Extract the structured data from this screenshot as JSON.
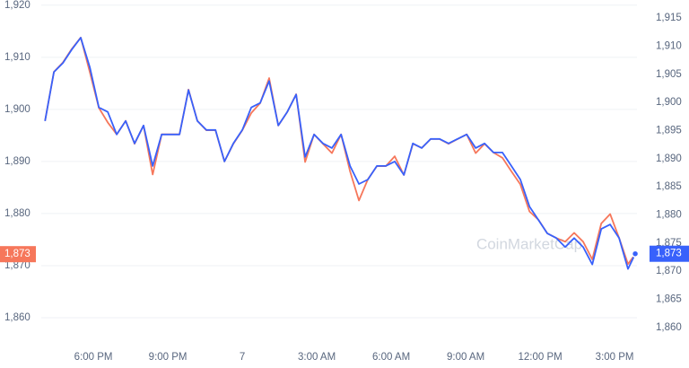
{
  "chart_data": {
    "type": "line",
    "watermark": "CoinMarketCap",
    "x": [
      16.05,
      16.41,
      16.77,
      17.13,
      17.49,
      17.86,
      18.22,
      18.58,
      18.94,
      19.3,
      19.66,
      20.02,
      20.39,
      20.75,
      21.11,
      21.47,
      21.83,
      22.19,
      22.55,
      22.92,
      23.28,
      23.64,
      24.0,
      24.36,
      24.72,
      25.08,
      25.45,
      25.81,
      26.17,
      26.53,
      26.89,
      27.25,
      27.61,
      27.98,
      28.34,
      28.7,
      29.06,
      29.42,
      29.78,
      30.14,
      30.51,
      30.87,
      31.23,
      31.59,
      31.95,
      32.31,
      32.67,
      33.04,
      33.4,
      33.76,
      34.12,
      34.48,
      34.84,
      35.2,
      35.57,
      35.93,
      36.29,
      36.65,
      37.01,
      37.37,
      37.73,
      38.1,
      38.46,
      38.82,
      39.18,
      39.54,
      39.83
    ],
    "series": [
      {
        "color": "#f6775b",
        "axis": "y",
        "current_label": "1,873",
        "values": [
          1897.8,
          1907.2,
          1909.0,
          1911.6,
          1913.8,
          1907.1,
          1900.3,
          1897.5,
          1895.2,
          1897.8,
          1893.4,
          1896.9,
          1887.5,
          1895.2,
          1895.2,
          1895.2,
          1903.8,
          1897.8,
          1896.0,
          1896.0,
          1890.0,
          1893.4,
          1896.0,
          1899.3,
          1901.2,
          1906.0,
          1896.9,
          1899.5,
          1902.9,
          1889.9,
          1895.2,
          1893.4,
          1891.6,
          1895.2,
          1888.1,
          1882.5,
          1886.6,
          1889.1,
          1889.1,
          1891.0,
          1887.4,
          1893.4,
          1892.6,
          1894.3,
          1894.3,
          1893.4,
          1894.3,
          1895.2,
          1891.6,
          1893.4,
          1891.7,
          1890.7,
          1888.1,
          1885.6,
          1880.4,
          1878.8,
          1876.2,
          1875.3,
          1874.6,
          1876.3,
          1874.6,
          1871.2,
          1878.1,
          1879.9,
          1875.3,
          1870.3,
          1872.2
        ]
      },
      {
        "color": "#3861fb",
        "axis": "y2",
        "current_label": "1,873",
        "values": [
          1896.7,
          1905.4,
          1907.0,
          1909.4,
          1911.5,
          1906.2,
          1899.1,
          1898.3,
          1894.3,
          1896.7,
          1892.7,
          1895.9,
          1888.7,
          1894.3,
          1894.3,
          1894.3,
          1902.2,
          1896.7,
          1895.1,
          1895.1,
          1889.5,
          1892.7,
          1895.1,
          1899.1,
          1899.9,
          1903.8,
          1895.9,
          1898.3,
          1901.4,
          1890.3,
          1894.3,
          1892.7,
          1891.9,
          1894.3,
          1888.7,
          1885.5,
          1886.3,
          1888.7,
          1888.7,
          1889.5,
          1887.1,
          1892.7,
          1891.9,
          1893.5,
          1893.5,
          1892.7,
          1893.5,
          1894.3,
          1891.9,
          1892.7,
          1891.1,
          1891.1,
          1888.7,
          1886.3,
          1881.5,
          1879.1,
          1876.7,
          1875.9,
          1874.3,
          1875.9,
          1874.3,
          1871.2,
          1877.5,
          1878.3,
          1875.9,
          1870.4,
          1873.1
        ]
      }
    ],
    "xlim": [
      15.9,
      39.9
    ],
    "xticks": [
      {
        "value": 18,
        "label": "6:00 PM"
      },
      {
        "value": 21,
        "label": "9:00 PM"
      },
      {
        "value": 24,
        "label": "7"
      },
      {
        "value": 27,
        "label": "3:00 AM"
      },
      {
        "value": 30,
        "label": "6:00 AM"
      },
      {
        "value": 33,
        "label": "9:00 AM"
      },
      {
        "value": 36,
        "label": "12:00 PM"
      },
      {
        "value": 39,
        "label": "3:00 PM"
      }
    ],
    "ylim": [
      1855,
      1921
    ],
    "yticks": [
      {
        "value": 1860,
        "label": "1,860"
      },
      {
        "value": 1870,
        "label": "1,870"
      },
      {
        "value": 1880,
        "label": "1,880"
      },
      {
        "value": 1890,
        "label": "1,890"
      },
      {
        "value": 1900,
        "label": "1,900"
      },
      {
        "value": 1910,
        "label": "1,910"
      },
      {
        "value": 1920,
        "label": "1,920"
      }
    ],
    "y2lim": [
      1857.1,
      1918.2
    ],
    "y2ticks": [
      {
        "value": 1860,
        "label": "1,860"
      },
      {
        "value": 1865,
        "label": "1,865"
      },
      {
        "value": 1870,
        "label": "1,870"
      },
      {
        "value": 1875,
        "label": "1,875"
      },
      {
        "value": 1880,
        "label": "1,880"
      },
      {
        "value": 1885,
        "label": "1,885"
      },
      {
        "value": 1890,
        "label": "1,890"
      },
      {
        "value": 1895,
        "label": "1,895"
      },
      {
        "value": 1900,
        "label": "1,900"
      },
      {
        "value": 1905,
        "label": "1,905"
      },
      {
        "value": 1910,
        "label": "1,910"
      },
      {
        "value": 1915,
        "label": "1,915"
      }
    ],
    "grid": true
  }
}
